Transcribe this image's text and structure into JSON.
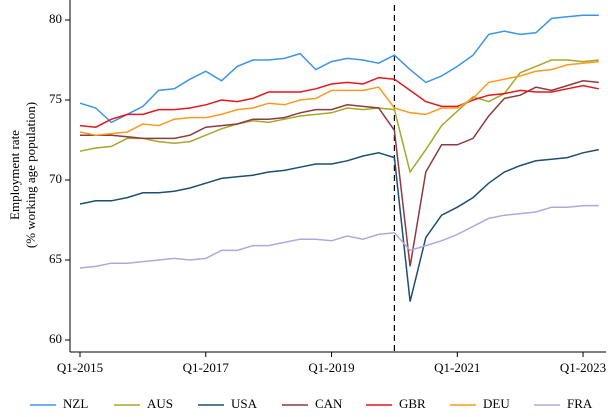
{
  "chart_data": {
    "type": "line",
    "ylabel": [
      "Employment rate",
      "(% working age population)"
    ],
    "categories": [
      "Q1-2015",
      null,
      null,
      null,
      null,
      null,
      null,
      null,
      "Q1-2017",
      null,
      null,
      null,
      null,
      null,
      null,
      null,
      "Q1-2019",
      null,
      null,
      null,
      null,
      null,
      null,
      null,
      "Q1-2021",
      null,
      null,
      null,
      null,
      null,
      null,
      null,
      "Q1-2023",
      null
    ],
    "ylim": [
      59.25,
      81.25
    ],
    "yticks": [
      60,
      65,
      70,
      75,
      80
    ],
    "vline": 20,
    "legend": "bottom",
    "series": [
      {
        "name": "NZL",
        "color": "#3d95e6",
        "values": [
          74.8,
          74.5,
          73.6,
          74.1,
          74.6,
          75.6,
          75.7,
          76.3,
          76.8,
          76.2,
          77.1,
          77.5,
          77.5,
          77.6,
          77.9,
          76.9,
          77.4,
          77.6,
          77.5,
          77.3,
          77.8,
          76.9,
          76.1,
          76.5,
          77.1,
          77.8,
          79.1,
          79.3,
          79.1,
          79.2,
          80.1,
          80.2,
          80.3,
          80.3
        ]
      },
      {
        "name": "AUS",
        "color": "#a5a829",
        "values": [
          71.8,
          72.0,
          72.1,
          72.6,
          72.6,
          72.4,
          72.3,
          72.4,
          72.8,
          73.2,
          73.5,
          73.7,
          73.6,
          73.8,
          74.0,
          74.1,
          74.2,
          74.5,
          74.4,
          74.5,
          74.4,
          70.5,
          71.9,
          73.4,
          74.3,
          75.2,
          74.9,
          75.4,
          76.7,
          77.1,
          77.5,
          77.5,
          77.4,
          77.5
        ]
      },
      {
        "name": "USA",
        "color": "#1d4f72",
        "values": [
          68.5,
          68.7,
          68.7,
          68.9,
          69.2,
          69.2,
          69.3,
          69.5,
          69.8,
          70.1,
          70.2,
          70.3,
          70.5,
          70.6,
          70.8,
          71.0,
          71.0,
          71.2,
          71.5,
          71.7,
          71.4,
          62.4,
          66.4,
          67.8,
          68.3,
          68.9,
          69.8,
          70.5,
          70.9,
          71.2,
          71.3,
          71.4,
          71.7,
          71.9
        ]
      },
      {
        "name": "CAN",
        "color": "#8c3b3f",
        "values": [
          72.8,
          72.8,
          72.8,
          72.7,
          72.6,
          72.6,
          72.6,
          72.8,
          73.3,
          73.4,
          73.5,
          73.8,
          73.8,
          73.9,
          74.2,
          74.4,
          74.4,
          74.7,
          74.6,
          74.5,
          73.1,
          64.6,
          70.5,
          72.2,
          72.2,
          72.6,
          74.0,
          75.1,
          75.3,
          75.8,
          75.6,
          75.9,
          76.2,
          76.1
        ]
      },
      {
        "name": "GBR",
        "color": "#e5161c",
        "values": [
          73.4,
          73.3,
          73.8,
          74.1,
          74.1,
          74.4,
          74.4,
          74.5,
          74.7,
          75.0,
          74.9,
          75.1,
          75.5,
          75.5,
          75.5,
          75.7,
          76.0,
          76.1,
          76.0,
          76.4,
          76.3,
          75.6,
          74.9,
          74.6,
          74.6,
          75.0,
          75.3,
          75.4,
          75.6,
          75.5,
          75.5,
          75.7,
          75.9,
          75.7
        ]
      },
      {
        "name": "DEU",
        "color": "#fb9a1c",
        "values": [
          73.0,
          72.8,
          72.9,
          73.0,
          73.5,
          73.4,
          73.8,
          73.9,
          73.9,
          74.1,
          74.4,
          74.5,
          74.8,
          74.7,
          75.0,
          75.1,
          75.6,
          75.6,
          75.6,
          75.8,
          74.5,
          74.2,
          74.1,
          74.5,
          74.5,
          75.1,
          76.1,
          76.3,
          76.5,
          76.8,
          76.9,
          77.2,
          77.3,
          77.4
        ]
      },
      {
        "name": "FRA",
        "color": "#b3a8dc",
        "values": [
          64.5,
          64.6,
          64.8,
          64.8,
          64.9,
          65.0,
          65.1,
          65.0,
          65.1,
          65.6,
          65.6,
          65.9,
          65.9,
          66.1,
          66.3,
          66.3,
          66.2,
          66.5,
          66.3,
          66.6,
          66.7,
          65.6,
          65.9,
          66.2,
          66.6,
          67.1,
          67.6,
          67.8,
          67.9,
          68.0,
          68.3,
          68.3,
          68.4,
          68.4
        ]
      }
    ]
  }
}
